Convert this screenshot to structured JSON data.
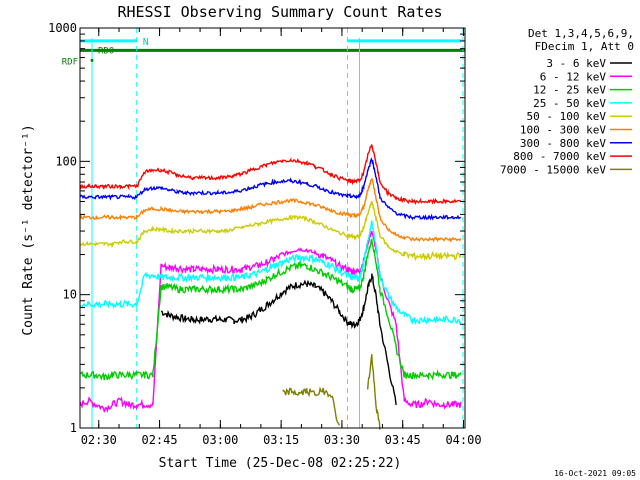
{
  "chart_data": {
    "type": "line",
    "title": "RHESSI Observing Summary Count Rates",
    "xlabel": "Start Time (25-Dec-08 02:25:22)",
    "ylabel": "Count Rate (s⁻¹ detector⁻¹)",
    "y_scale": "log",
    "ylim": [
      1,
      1000
    ],
    "xlim_min": [
      0,
      95
    ],
    "x_tick_labels": [
      "02:30",
      "02:45",
      "03:00",
      "03:15",
      "03:30",
      "03:45",
      "04:00"
    ],
    "x_tick_minutes": [
      4.63,
      19.63,
      34.63,
      49.63,
      64.63,
      79.63,
      94.63
    ],
    "y_tick_labels": [
      "1",
      "10",
      "100",
      "1000"
    ],
    "y_tick_values": [
      1,
      10,
      100,
      1000
    ],
    "grid": false,
    "legend_position": "right",
    "legend_header": [
      "Det 1,3,4,5,6,9,",
      "FDecim 1, Att 0"
    ],
    "footer_date": "16-Oct-2021 09:05",
    "annotations": {
      "rdf_label": "RDF",
      "rd0_label": "RD0",
      "n_label": "N",
      "rd0_level": 680,
      "n_bar_level": 800,
      "night_segments": [
        [
          0,
          14
        ],
        [
          66,
          94
        ]
      ],
      "dashed_lines_min": [
        0,
        14,
        66,
        94.5
      ],
      "solid_lines_min": [
        0,
        66
      ]
    },
    "time_min": [
      0,
      2,
      4,
      6,
      8,
      10,
      12,
      14,
      16,
      18,
      20,
      22,
      24,
      26,
      28,
      30,
      32,
      34,
      36,
      38,
      40,
      42,
      44,
      46,
      48,
      50,
      52,
      54,
      56,
      58,
      60,
      62,
      64,
      66,
      67,
      68,
      69,
      70,
      71,
      72,
      73,
      74,
      76,
      78,
      80,
      82,
      84,
      86,
      88,
      90,
      92,
      94
    ],
    "series": [
      {
        "name": "3 - 6 keV",
        "color": "#000000",
        "values": [
          null,
          null,
          null,
          null,
          null,
          null,
          null,
          null,
          null,
          null,
          7.5,
          7.0,
          6.8,
          6.6,
          6.5,
          6.5,
          6.6,
          6.5,
          6.5,
          6.4,
          6.5,
          6.8,
          7.5,
          8.3,
          9.3,
          10.5,
          11.5,
          12.0,
          12.0,
          11.5,
          10.5,
          9.0,
          7.5,
          6.2,
          6.0,
          6.0,
          6.5,
          8.0,
          11.0,
          14.0,
          10.0,
          6.0,
          3.0,
          1.5,
          null,
          null,
          null,
          null,
          null,
          null,
          null,
          null
        ]
      },
      {
        "name": "6 - 12 keV",
        "color": "#ff00ff",
        "values": [
          1.5,
          1.6,
          1.5,
          1.4,
          1.5,
          1.6,
          1.5,
          1.5,
          1.5,
          1.5,
          16.5,
          16.0,
          16.0,
          15.5,
          15.5,
          15.5,
          15.5,
          15.5,
          15.5,
          15.5,
          15.5,
          16.0,
          16.5,
          17.5,
          18.5,
          20.0,
          21.0,
          22.0,
          21.5,
          20.5,
          19.5,
          18.0,
          16.5,
          15.5,
          15.0,
          15.0,
          15.0,
          18.0,
          24.0,
          30.0,
          22.0,
          14.0,
          9.0,
          6.0,
          1.6,
          1.5,
          1.5,
          1.6,
          1.5,
          1.5,
          1.5,
          1.5
        ]
      },
      {
        "name": "12 - 25 keV",
        "color": "#00cc00",
        "values": [
          2.5,
          2.5,
          2.5,
          2.4,
          2.5,
          2.5,
          2.5,
          2.5,
          2.5,
          2.5,
          11.5,
          11.5,
          11.0,
          11.0,
          11.0,
          11.0,
          11.0,
          11.0,
          11.0,
          11.0,
          11.0,
          11.5,
          12.0,
          13.0,
          14.0,
          15.0,
          16.0,
          16.5,
          16.5,
          15.5,
          14.5,
          13.5,
          12.5,
          11.5,
          11.0,
          11.0,
          11.0,
          14.0,
          20.0,
          26.0,
          18.0,
          11.0,
          7.0,
          4.0,
          2.5,
          2.5,
          2.5,
          2.5,
          2.5,
          2.5,
          2.5,
          2.5
        ]
      },
      {
        "name": "25 - 50 keV",
        "color": "#00ffff",
        "values": [
          8.5,
          8.5,
          8.5,
          8.5,
          8.5,
          8.5,
          8.5,
          8.5,
          14.0,
          14.0,
          13.5,
          13.5,
          13.5,
          13.5,
          13.5,
          13.5,
          13.5,
          13.5,
          13.5,
          13.5,
          13.5,
          14.0,
          14.5,
          15.5,
          16.5,
          17.5,
          18.5,
          19.0,
          19.0,
          18.5,
          17.5,
          16.5,
          15.0,
          14.0,
          13.5,
          13.5,
          13.5,
          17.0,
          25.0,
          35.0,
          24.0,
          14.0,
          10.0,
          8.0,
          7.0,
          6.5,
          6.5,
          6.5,
          6.5,
          6.5,
          6.5,
          6.5
        ]
      },
      {
        "name": "50 - 100 keV",
        "color": "#cccc00",
        "values": [
          24.0,
          24.0,
          24.0,
          24.0,
          24.0,
          25.0,
          25.0,
          25.0,
          30.0,
          31.0,
          31.0,
          30.0,
          30.0,
          30.0,
          30.0,
          30.0,
          30.0,
          30.0,
          30.0,
          31.0,
          32.0,
          33.0,
          34.0,
          35.0,
          36.0,
          37.0,
          38.0,
          38.0,
          37.0,
          35.0,
          33.0,
          31.0,
          29.0,
          28.0,
          27.5,
          27.0,
          27.5,
          32.0,
          40.0,
          50.0,
          38.0,
          28.0,
          23.0,
          21.0,
          20.0,
          19.5,
          19.5,
          19.5,
          19.5,
          19.5,
          19.5,
          19.5
        ]
      },
      {
        "name": "100 - 300 keV",
        "color": "#ff8000",
        "values": [
          38.0,
          38.0,
          38.0,
          38.0,
          38.0,
          38.0,
          38.0,
          38.0,
          43.0,
          44.0,
          44.0,
          43.0,
          42.0,
          42.0,
          42.0,
          42.0,
          42.0,
          42.0,
          42.0,
          43.0,
          44.0,
          45.0,
          47.0,
          48.0,
          49.0,
          50.0,
          51.0,
          50.0,
          49.0,
          47.0,
          45.0,
          43.0,
          41.0,
          40.0,
          39.5,
          39.0,
          39.5,
          46.0,
          60.0,
          75.0,
          55.0,
          38.0,
          31.0,
          28.0,
          27.0,
          26.0,
          26.0,
          26.0,
          26.0,
          26.0,
          26.0,
          26.0
        ]
      },
      {
        "name": "300 - 800 keV",
        "color": "#0000ff",
        "values": [
          54.0,
          54.0,
          54.0,
          54.0,
          54.0,
          54.0,
          54.0,
          54.0,
          62.0,
          63.0,
          63.0,
          61.0,
          59.0,
          58.0,
          58.0,
          58.0,
          58.0,
          58.0,
          58.0,
          59.0,
          61.0,
          63.0,
          66.0,
          68.0,
          70.0,
          71.0,
          71.0,
          70.0,
          68.0,
          65.0,
          62.0,
          59.0,
          56.0,
          55.0,
          54.5,
          54.0,
          55.0,
          65.0,
          85.0,
          105.0,
          78.0,
          54.0,
          45.0,
          41.0,
          39.0,
          38.0,
          38.0,
          38.0,
          38.0,
          38.0,
          38.0,
          38.0
        ]
      },
      {
        "name": "800 - 7000 keV",
        "color": "#ff0000",
        "values": [
          65.0,
          65.0,
          65.0,
          65.0,
          65.0,
          65.0,
          65.0,
          65.0,
          83.0,
          86.0,
          86.0,
          83.0,
          79.0,
          77.0,
          75.0,
          75.0,
          75.0,
          75.0,
          76.0,
          78.0,
          81.0,
          85.0,
          90.0,
          94.0,
          98.0,
          101.0,
          102.0,
          100.0,
          97.0,
          92.0,
          86.0,
          80.0,
          75.0,
          72.0,
          71.0,
          71.0,
          72.0,
          82.0,
          110.0,
          135.0,
          100.0,
          70.0,
          58.0,
          53.0,
          51.0,
          50.0,
          50.0,
          50.0,
          50.0,
          50.0,
          50.0,
          50.0
        ]
      },
      {
        "name": "7000 - 15000 keV",
        "color": "#808000",
        "values": [
          null,
          null,
          null,
          null,
          null,
          null,
          null,
          null,
          null,
          null,
          null,
          null,
          null,
          null,
          null,
          null,
          null,
          null,
          null,
          null,
          null,
          null,
          null,
          null,
          null,
          1.8,
          1.9,
          1.8,
          1.9,
          1.8,
          1.9,
          1.8,
          1.0,
          null,
          null,
          null,
          null,
          null,
          2.0,
          3.5,
          1.5,
          1.0,
          null,
          null,
          null,
          null,
          null,
          null,
          null,
          null,
          null,
          null
        ]
      }
    ]
  }
}
